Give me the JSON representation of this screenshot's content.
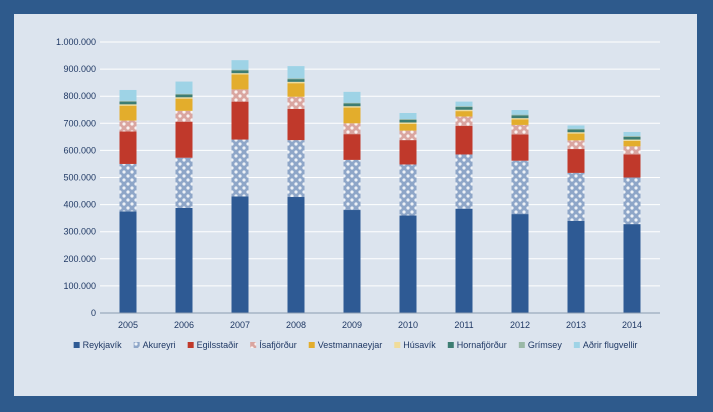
{
  "chart_data": {
    "type": "bar",
    "stacked": true,
    "title": "",
    "xlabel": "",
    "ylabel": "",
    "categories": [
      "2005",
      "2006",
      "2007",
      "2008",
      "2009",
      "2010",
      "2011",
      "2012",
      "2013",
      "2014"
    ],
    "ylim": [
      0,
      1000000
    ],
    "yticks": [
      0,
      100000,
      200000,
      300000,
      400000,
      500000,
      600000,
      700000,
      800000,
      900000,
      1000000
    ],
    "ytick_labels": [
      "0",
      "100.000",
      "200.000",
      "300.000",
      "400.000",
      "500.000",
      "600.000",
      "700.000",
      "800.000",
      "900.000",
      "1.000.000"
    ],
    "grid": true,
    "legend_position": "bottom",
    "series": [
      {
        "name": "Reykjavík",
        "color": "#2e5a94",
        "pattern": "solid",
        "values": [
          375000,
          388000,
          430000,
          428000,
          380000,
          360000,
          385000,
          365000,
          340000,
          328000
        ]
      },
      {
        "name": "Akureyri",
        "color": "#8ea6c8",
        "pattern": "dots",
        "values": [
          175000,
          185000,
          210000,
          210000,
          185000,
          188000,
          200000,
          197000,
          177000,
          172000
        ]
      },
      {
        "name": "Egilsstaðir",
        "color": "#c0392b",
        "pattern": "solid",
        "values": [
          120000,
          133000,
          140000,
          115000,
          95000,
          90000,
          105000,
          97000,
          88000,
          85000
        ]
      },
      {
        "name": "Ísafjörður",
        "color": "#d9a5a0",
        "pattern": "dots",
        "values": [
          40000,
          40000,
          45000,
          45000,
          40000,
          35000,
          35000,
          35000,
          32000,
          30000
        ]
      },
      {
        "name": "Vestmannaeyjar",
        "color": "#e3ad2c",
        "pattern": "solid",
        "values": [
          55000,
          45000,
          55000,
          50000,
          58000,
          25000,
          20000,
          20000,
          25000,
          20000
        ]
      },
      {
        "name": "Húsavík",
        "color": "#f0dc9a",
        "pattern": "solid",
        "values": [
          5000,
          5000,
          5000,
          5000,
          5000,
          5000,
          5000,
          5000,
          5000,
          5000
        ]
      },
      {
        "name": "Hornafjörður",
        "color": "#3d7d72",
        "pattern": "solid",
        "values": [
          10000,
          10000,
          10000,
          10000,
          10000,
          10000,
          10000,
          10000,
          10000,
          10000
        ]
      },
      {
        "name": "Grímsey",
        "color": "#9ab8a6",
        "pattern": "solid",
        "values": [
          3000,
          3000,
          3000,
          3000,
          3000,
          3000,
          3000,
          3000,
          3000,
          3000
        ]
      },
      {
        "name": "Aðrir flugvellir",
        "color": "#9ed3e6",
        "pattern": "solid",
        "values": [
          40000,
          45000,
          35000,
          45000,
          40000,
          22000,
          17000,
          17000,
          12000,
          15000
        ]
      }
    ]
  }
}
